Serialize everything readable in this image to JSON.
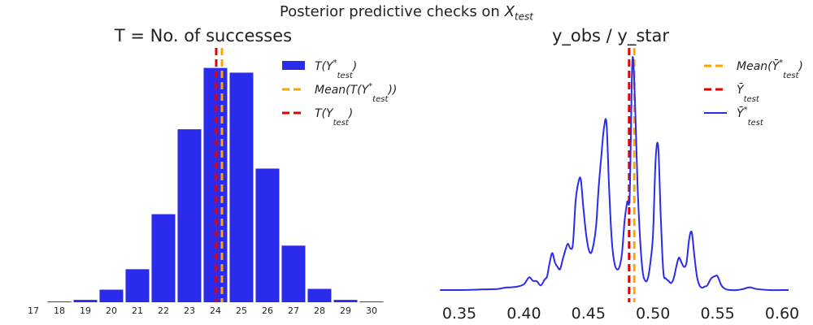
{
  "figure": {
    "suptitle_text": "Posterior predictive checks on ",
    "suptitle_var": "X",
    "suptitle_sub": "test"
  },
  "chart_data": [
    {
      "type": "bar",
      "title": "T = No. of successes",
      "xlabel": "",
      "ylabel": "",
      "grid": false,
      "legend_position": "top-right",
      "categories": [
        "17",
        "18",
        "19",
        "20",
        "21",
        "22",
        "23",
        "24",
        "25",
        "26",
        "27",
        "28",
        "29",
        "30"
      ],
      "values": [
        0,
        1,
        3,
        16,
        42,
        112,
        220,
        298,
        292,
        170,
        72,
        17,
        3,
        1
      ],
      "ylim": [
        0,
        310
      ],
      "series_color": "#2b2bec",
      "vlines": [
        {
          "x": 24.25,
          "color": "#ffa500",
          "label_main": "Mean(T(Y",
          "label_sup": "*",
          "label_sub": "test",
          "label_tail": "))"
        },
        {
          "x": 24.03,
          "color": "#e60000",
          "label_main": "T(Y",
          "label_sup": "",
          "label_sub": "test",
          "label_tail": ")"
        }
      ],
      "legend": [
        {
          "kind": "patch",
          "color": "#2b2bec",
          "label_main": "T(Y",
          "label_sup": "*",
          "label_sub": "test",
          "label_tail": ")"
        },
        {
          "kind": "dash",
          "color": "#ffa500",
          "label_main": "Mean(T(Y",
          "label_sup": "*",
          "label_sub": "test",
          "label_tail": "))"
        },
        {
          "kind": "dash",
          "color": "#e60000",
          "label_main": "T(Y",
          "label_sup": "",
          "label_sub": "test",
          "label_tail": ")"
        }
      ]
    },
    {
      "type": "line",
      "title": "y_obs / y_star",
      "xlabel": "",
      "ylabel": "",
      "grid": false,
      "legend_position": "top-right",
      "xlim": [
        0.335,
        0.605
      ],
      "ylim": [
        0,
        1
      ],
      "xticks": [
        0.35,
        0.4,
        0.45,
        0.5,
        0.55,
        0.6
      ],
      "xtick_labels": [
        "0.35",
        "0.40",
        "0.45",
        "0.50",
        "0.55",
        "0.60"
      ],
      "series": [
        {
          "name": "Ȳ*test",
          "color": "#2b2bec",
          "x": [
            0.335,
            0.35,
            0.37,
            0.38,
            0.385,
            0.39,
            0.395,
            0.4,
            0.404,
            0.407,
            0.41,
            0.413,
            0.416,
            0.418,
            0.42,
            0.422,
            0.424,
            0.426,
            0.428,
            0.43,
            0.432,
            0.434,
            0.436,
            0.438,
            0.44,
            0.442,
            0.444,
            0.446,
            0.448,
            0.45,
            0.452,
            0.454,
            0.456,
            0.458,
            0.46,
            0.462,
            0.464,
            0.466,
            0.468,
            0.47,
            0.472,
            0.474,
            0.476,
            0.478,
            0.48,
            0.482,
            0.484,
            0.486,
            0.488,
            0.49,
            0.492,
            0.494,
            0.496,
            0.498,
            0.5,
            0.502,
            0.504,
            0.506,
            0.508,
            0.51,
            0.512,
            0.514,
            0.516,
            0.518,
            0.52,
            0.522,
            0.524,
            0.526,
            0.528,
            0.53,
            0.532,
            0.534,
            0.536,
            0.538,
            0.54,
            0.542,
            0.545,
            0.548,
            0.55,
            0.553,
            0.556,
            0.56,
            0.565,
            0.57,
            0.575,
            0.58,
            0.59,
            0.605
          ],
          "y": [
            0.0,
            0.0,
            0.003,
            0.005,
            0.01,
            0.012,
            0.015,
            0.025,
            0.055,
            0.04,
            0.038,
            0.02,
            0.045,
            0.06,
            0.12,
            0.16,
            0.12,
            0.1,
            0.09,
            0.13,
            0.17,
            0.2,
            0.18,
            0.2,
            0.38,
            0.46,
            0.48,
            0.36,
            0.25,
            0.18,
            0.16,
            0.2,
            0.28,
            0.45,
            0.58,
            0.7,
            0.72,
            0.44,
            0.22,
            0.12,
            0.09,
            0.1,
            0.16,
            0.3,
            0.38,
            0.42,
            0.99,
            0.82,
            0.46,
            0.22,
            0.08,
            0.04,
            0.05,
            0.12,
            0.24,
            0.56,
            0.62,
            0.32,
            0.08,
            0.05,
            0.04,
            0.03,
            0.05,
            0.1,
            0.14,
            0.12,
            0.1,
            0.12,
            0.22,
            0.25,
            0.15,
            0.06,
            0.02,
            0.01,
            0.015,
            0.02,
            0.05,
            0.06,
            0.06,
            0.02,
            0.005,
            0.0,
            0.0,
            0.005,
            0.012,
            0.005,
            0.0,
            0.0
          ]
        }
      ],
      "vlines": [
        {
          "x": 0.4855,
          "color": "#ffa500",
          "label_main": "Mean(Ȳ",
          "label_sup": "*",
          "label_sub": "test",
          "label_tail": ")"
        },
        {
          "x": 0.4815,
          "color": "#e60000",
          "label_main": "Ȳ",
          "label_sup": "",
          "label_sub": "test",
          "label_tail": ""
        }
      ],
      "legend": [
        {
          "kind": "dash",
          "color": "#ffa500",
          "label_main": "Mean(Ȳ",
          "label_sup": "*",
          "label_sub": "test",
          "label_tail": ")"
        },
        {
          "kind": "dash",
          "color": "#e60000",
          "label_main": "Ȳ",
          "label_sup": "",
          "label_sub": "test",
          "label_tail": ""
        },
        {
          "kind": "line",
          "color": "#2b2bec",
          "label_main": "Ȳ",
          "label_sup": "*",
          "label_sub": "test",
          "label_tail": ""
        }
      ]
    }
  ]
}
